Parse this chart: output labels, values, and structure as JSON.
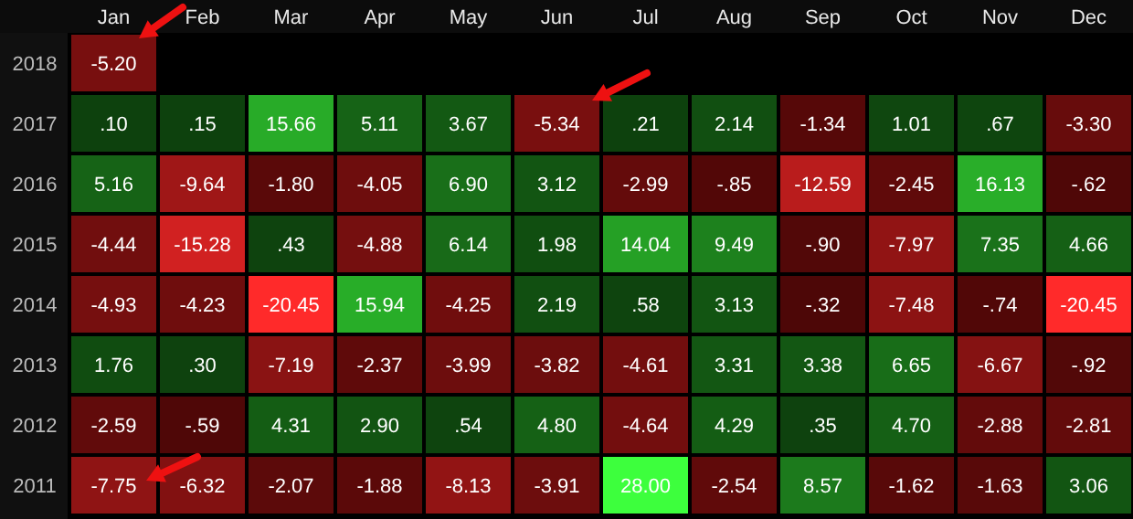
{
  "chart_data": {
    "type": "heatmap",
    "categories": [
      "Jan",
      "Feb",
      "Mar",
      "Apr",
      "May",
      "Jun",
      "Jul",
      "Aug",
      "Sep",
      "Oct",
      "Nov",
      "Dec"
    ],
    "y_categories": [
      "2018",
      "2017",
      "2016",
      "2015",
      "2014",
      "2013",
      "2012",
      "2011"
    ],
    "cells": [
      [
        -5.2,
        null,
        null,
        null,
        null,
        null,
        null,
        null,
        null,
        null,
        null,
        null
      ],
      [
        0.1,
        0.15,
        15.66,
        5.11,
        3.67,
        -5.34,
        0.21,
        2.14,
        -1.34,
        1.01,
        0.67,
        -3.3
      ],
      [
        5.16,
        -9.64,
        -1.8,
        -4.05,
        6.9,
        3.12,
        -2.99,
        -0.85,
        -12.59,
        -2.45,
        16.13,
        -0.62
      ],
      [
        -4.44,
        -15.28,
        0.43,
        -4.88,
        6.14,
        1.98,
        14.04,
        9.49,
        -0.9,
        -7.97,
        7.35,
        4.66
      ],
      [
        -4.93,
        -4.23,
        -20.45,
        15.94,
        -4.25,
        2.19,
        0.58,
        3.13,
        -0.32,
        -7.48,
        -0.74,
        -20.45
      ],
      [
        1.76,
        0.3,
        -7.19,
        -2.37,
        -3.99,
        -3.82,
        -4.61,
        3.31,
        3.38,
        6.65,
        -6.67,
        -0.92
      ],
      [
        -2.59,
        -0.59,
        4.31,
        2.9,
        0.54,
        4.8,
        -4.64,
        4.29,
        0.35,
        4.7,
        -2.88,
        -2.81
      ],
      [
        -7.75,
        -6.32,
        -2.07,
        -1.88,
        -8.13,
        -3.91,
        28.0,
        -2.54,
        8.57,
        -1.62,
        -1.63,
        3.06
      ]
    ],
    "cell_labels": [
      [
        "-5.20",
        null,
        null,
        null,
        null,
        null,
        null,
        null,
        null,
        null,
        null,
        null
      ],
      [
        ".10",
        ".15",
        "15.66",
        "5.11",
        "3.67",
        "-5.34",
        ".21",
        "2.14",
        "-1.34",
        "1.01",
        ".67",
        "-3.30"
      ],
      [
        "5.16",
        "-9.64",
        "-1.80",
        "-4.05",
        "6.90",
        "3.12",
        "-2.99",
        "-.85",
        "-12.59",
        "-2.45",
        "16.13",
        "-.62"
      ],
      [
        "-4.44",
        "-15.28",
        ".43",
        "-4.88",
        "6.14",
        "1.98",
        "14.04",
        "9.49",
        "-.90",
        "-7.97",
        "7.35",
        "4.66"
      ],
      [
        "-4.93",
        "-4.23",
        "-20.45",
        "15.94",
        "-4.25",
        "2.19",
        ".58",
        "3.13",
        "-.32",
        "-7.48",
        "-.74",
        "-20.45"
      ],
      [
        "1.76",
        ".30",
        "-7.19",
        "-2.37",
        "-3.99",
        "-3.82",
        "-4.61",
        "3.31",
        "3.38",
        "6.65",
        "-6.67",
        "-.92"
      ],
      [
        "-2.59",
        "-.59",
        "4.31",
        "2.90",
        ".54",
        "4.80",
        "-4.64",
        "4.29",
        ".35",
        "4.70",
        "-2.88",
        "-2.81"
      ],
      [
        "-7.75",
        "-6.32",
        "-2.07",
        "-1.88",
        "-8.13",
        "-3.91",
        "28.00",
        "-2.54",
        "8.57",
        "-1.62",
        "-1.63",
        "3.06"
      ]
    ]
  }
}
